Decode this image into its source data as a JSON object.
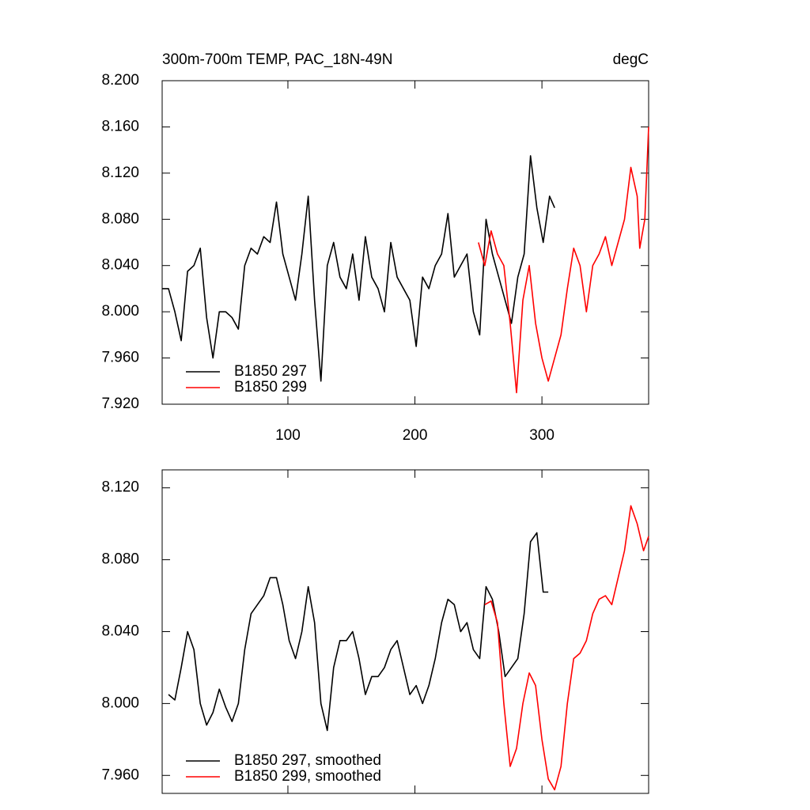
{
  "chart_data": [
    {
      "type": "line",
      "title": "300m-700m TEMP, PAC_18N-49N",
      "units": "degC",
      "xlim": [
        1,
        384
      ],
      "xticks": [
        100,
        200,
        300
      ],
      "ylim": [
        7.92,
        8.2
      ],
      "yticks": [
        {
          "value": 7.92,
          "label": "7.920"
        },
        {
          "value": 7.96,
          "label": "7.960"
        },
        {
          "value": 8.0,
          "label": "8.000"
        },
        {
          "value": 8.04,
          "label": "8.040"
        },
        {
          "value": 8.08,
          "label": "8.080"
        },
        {
          "value": 8.12,
          "label": "8.120"
        },
        {
          "value": 8.16,
          "label": "8.160"
        },
        {
          "value": 8.2,
          "label": "8.200"
        }
      ],
      "series": [
        {
          "name": "B1850 297",
          "color": "#000000",
          "x": [
            1,
            6,
            11,
            16,
            21,
            26,
            31,
            36,
            41,
            46,
            51,
            56,
            61,
            66,
            71,
            76,
            81,
            86,
            91,
            96,
            101,
            106,
            111,
            116,
            121,
            126,
            131,
            136,
            141,
            146,
            151,
            156,
            161,
            166,
            171,
            176,
            181,
            186,
            191,
            196,
            201,
            206,
            211,
            216,
            221,
            226,
            231,
            236,
            241,
            246,
            251,
            256,
            261,
            266,
            271,
            276,
            281,
            286,
            291,
            296,
            301,
            306,
            310
          ],
          "values": [
            8.02,
            8.02,
            8.0,
            7.975,
            8.035,
            8.04,
            8.055,
            7.995,
            7.96,
            8.0,
            8.0,
            7.995,
            7.985,
            8.04,
            8.055,
            8.05,
            8.065,
            8.06,
            8.095,
            8.05,
            8.03,
            8.01,
            8.05,
            8.1,
            8.01,
            7.94,
            8.04,
            8.06,
            8.03,
            8.02,
            8.05,
            8.01,
            8.065,
            8.03,
            8.02,
            8.0,
            8.06,
            8.03,
            8.02,
            8.01,
            7.97,
            8.03,
            8.02,
            8.04,
            8.05,
            8.085,
            8.03,
            8.04,
            8.05,
            8.0,
            7.98,
            8.08,
            8.05,
            8.03,
            8.01,
            7.99,
            8.03,
            8.05,
            8.135,
            8.09,
            8.06,
            8.1,
            8.09
          ]
        },
        {
          "name": "B1850 299",
          "color": "#ff0000",
          "x": [
            250,
            255,
            260,
            265,
            270,
            275,
            280,
            285,
            290,
            295,
            300,
            305,
            310,
            315,
            320,
            325,
            330,
            335,
            340,
            345,
            350,
            355,
            360,
            365,
            370,
            375,
            377,
            381,
            384
          ],
          "values": [
            8.06,
            8.04,
            8.07,
            8.05,
            8.04,
            7.99,
            7.93,
            8.01,
            8.04,
            7.99,
            7.96,
            7.94,
            7.96,
            7.98,
            8.02,
            8.055,
            8.04,
            8.0,
            8.04,
            8.05,
            8.065,
            8.04,
            8.06,
            8.08,
            8.125,
            8.1,
            8.055,
            8.08,
            8.16
          ]
        }
      ]
    },
    {
      "type": "line",
      "xlim": [
        1,
        384
      ],
      "xticks": [
        100,
        200,
        300
      ],
      "ylim": [
        7.95,
        8.13
      ],
      "yticks": [
        {
          "value": 7.96,
          "label": "7.960"
        },
        {
          "value": 8.0,
          "label": "8.000"
        },
        {
          "value": 8.04,
          "label": "8.040"
        },
        {
          "value": 8.08,
          "label": "8.080"
        },
        {
          "value": 8.12,
          "label": "8.120"
        }
      ],
      "series": [
        {
          "name": "B1850 297, smoothed",
          "color": "#000000",
          "x": [
            6,
            11,
            16,
            21,
            26,
            31,
            36,
            41,
            46,
            51,
            56,
            61,
            66,
            71,
            76,
            81,
            86,
            91,
            96,
            101,
            106,
            111,
            116,
            121,
            126,
            131,
            136,
            141,
            146,
            151,
            156,
            161,
            166,
            171,
            176,
            181,
            186,
            191,
            196,
            201,
            206,
            211,
            216,
            221,
            226,
            231,
            236,
            241,
            246,
            251,
            256,
            261,
            266,
            271,
            276,
            281,
            286,
            291,
            296,
            301,
            305
          ],
          "values": [
            8.005,
            8.002,
            8.02,
            8.04,
            8.03,
            8.0,
            7.988,
            7.995,
            8.008,
            7.998,
            7.99,
            8.0,
            8.03,
            8.05,
            8.055,
            8.06,
            8.07,
            8.07,
            8.055,
            8.035,
            8.025,
            8.04,
            8.065,
            8.045,
            8.0,
            7.985,
            8.02,
            8.035,
            8.035,
            8.04,
            8.025,
            8.005,
            8.015,
            8.015,
            8.02,
            8.03,
            8.035,
            8.02,
            8.005,
            8.01,
            8.0,
            8.01,
            8.025,
            8.045,
            8.058,
            8.055,
            8.04,
            8.045,
            8.03,
            8.025,
            8.065,
            8.058,
            8.04,
            8.015,
            8.02,
            8.025,
            8.05,
            8.09,
            8.095,
            8.062,
            8.062
          ]
        },
        {
          "name": "B1850 299, smoothed",
          "color": "#ff0000",
          "x": [
            255,
            260,
            265,
            270,
            275,
            280,
            285,
            290,
            295,
            300,
            305,
            310,
            315,
            320,
            325,
            330,
            335,
            340,
            345,
            350,
            355,
            360,
            365,
            370,
            375,
            380,
            384
          ],
          "values": [
            8.055,
            8.057,
            8.045,
            8.0,
            7.965,
            7.975,
            8.0,
            8.017,
            8.01,
            7.98,
            7.958,
            7.952,
            7.965,
            8.0,
            8.025,
            8.028,
            8.035,
            8.05,
            8.058,
            8.06,
            8.055,
            8.07,
            8.085,
            8.11,
            8.1,
            8.085,
            8.093
          ]
        }
      ]
    }
  ]
}
